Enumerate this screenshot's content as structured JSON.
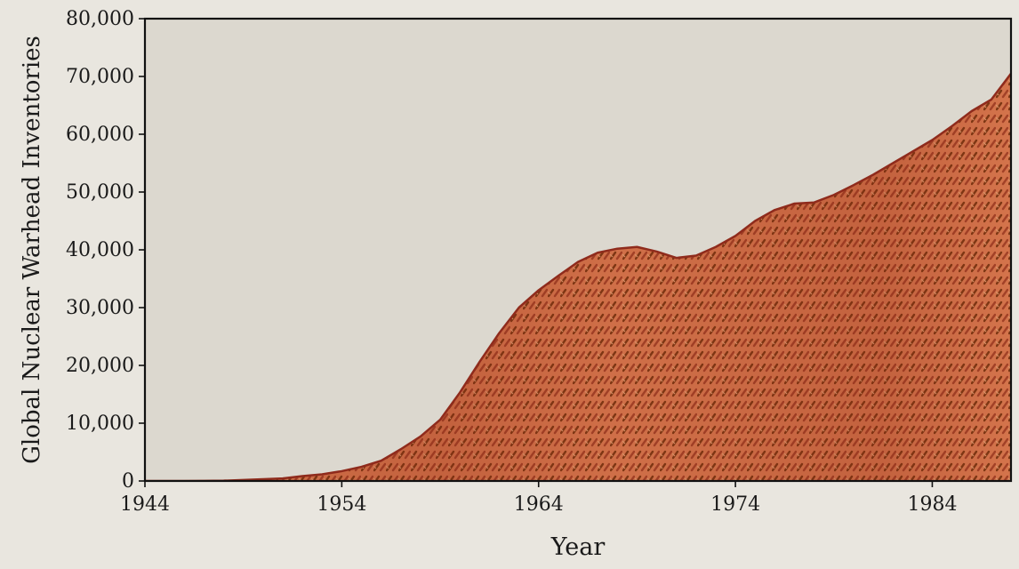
{
  "chart_data": {
    "type": "area",
    "title": "",
    "xlabel": "Year",
    "ylabel": "Global Nuclear Warhead Inventories",
    "xlim": [
      1944,
      1988
    ],
    "ylim": [
      0,
      80000
    ],
    "x_ticks": [
      "1944",
      "1954",
      "1964",
      "1974",
      "1984"
    ],
    "y_ticks": [
      "0",
      "10,000",
      "20,000",
      "30,000",
      "40,000",
      "50,000",
      "60,000",
      "70,000",
      "80,000"
    ],
    "grid": false,
    "legend": "none",
    "colors": {
      "fill": "#d7744c",
      "fill_dark": "#b9432a",
      "chevron": "#7b3a14",
      "stroke": "#8f2b1c",
      "background": "#dcd8cf"
    },
    "series": [
      {
        "x": [
          1944,
          1945,
          1946,
          1947,
          1948,
          1949,
          1950,
          1951,
          1952,
          1953,
          1954,
          1955,
          1956,
          1957,
          1958,
          1959,
          1960,
          1961,
          1962,
          1963,
          1964,
          1965,
          1966,
          1967,
          1968,
          1969,
          1970,
          1971,
          1972,
          1973,
          1974,
          1975,
          1976,
          1977,
          1978,
          1979,
          1980,
          1981,
          1982,
          1983,
          1984,
          1985,
          1986,
          1987,
          1988
        ],
        "values": [
          0,
          2,
          9,
          13,
          50,
          170,
          300,
          440,
          850,
          1160,
          1700,
          2450,
          3500,
          5500,
          7700,
          10600,
          15300,
          20600,
          25600,
          30000,
          33000,
          35500,
          37900,
          39500,
          40200,
          40500,
          39700,
          38600,
          39000,
          40500,
          42400,
          45000,
          46900,
          48000,
          48200,
          49500,
          51200,
          53000,
          55000,
          57000,
          59000,
          61400,
          64000,
          66000,
          70500
        ]
      }
    ]
  }
}
